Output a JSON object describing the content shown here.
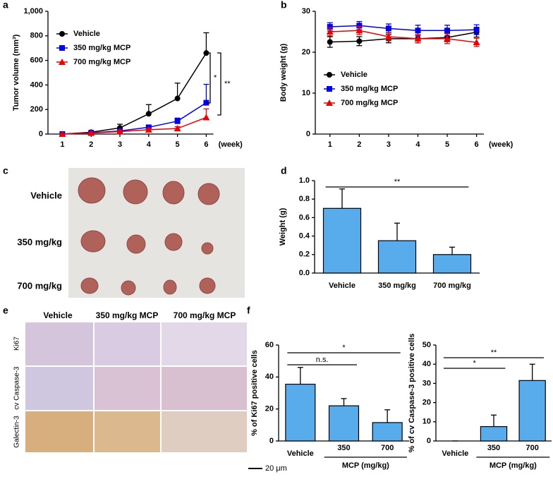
{
  "chart_data": [
    {
      "type": "line",
      "panel": "a",
      "ylabel": "Tumor volume (mm³)",
      "xlabel": "(week)",
      "x": [
        1,
        2,
        3,
        4,
        5,
        6
      ],
      "xlim": [
        0.5,
        6.25
      ],
      "xticks": [
        1,
        2,
        3,
        4,
        5,
        6
      ],
      "ylim": [
        0,
        1000
      ],
      "yticks": [
        0,
        200,
        400,
        600,
        800,
        {
          "value": 1000,
          "label": "1,000"
        }
      ],
      "legend": "upper left",
      "error_bars": "up",
      "series": [
        {
          "name": "Vehicle",
          "color": "#000000",
          "marker": "circle",
          "values": [
            0,
            15,
            50,
            165,
            290,
            660
          ],
          "errors": [
            0,
            5,
            30,
            75,
            125,
            165
          ]
        },
        {
          "name": "350 mg/kg MCP",
          "color": "#0000ee",
          "marker": "square",
          "values": [
            0,
            10,
            25,
            55,
            105,
            255
          ],
          "errors": [
            0,
            3,
            10,
            15,
            25,
            150
          ]
        },
        {
          "name": "700 mg/kg MCP",
          "color": "#ee0000",
          "marker": "triangle",
          "values": [
            0,
            8,
            20,
            35,
            45,
            135
          ],
          "errors": [
            0,
            3,
            8,
            10,
            15,
            70
          ]
        }
      ],
      "annotations": [
        "*",
        "**"
      ]
    },
    {
      "type": "line",
      "panel": "b",
      "ylabel": "Body weight (g)",
      "xlabel": "(week)",
      "x": [
        1,
        2,
        3,
        4,
        5,
        6
      ],
      "xlim": [
        0.5,
        6.25
      ],
      "xticks": [
        1,
        2,
        3,
        4,
        5,
        6
      ],
      "ylim": [
        0,
        30
      ],
      "yticks": [
        0,
        10,
        20,
        30
      ],
      "legend": "center left",
      "error_bars": "both",
      "series": [
        {
          "name": "Vehicle",
          "color": "#000000",
          "marker": "circle",
          "values": [
            22.5,
            22.7,
            23.3,
            23.3,
            23.6,
            24.9
          ],
          "errors": [
            1.3,
            1.1,
            1.0,
            1.0,
            1.0,
            1.2
          ]
        },
        {
          "name": "350 mg/kg MCP",
          "color": "#0000ee",
          "marker": "square",
          "values": [
            26.2,
            26.5,
            25.8,
            25.3,
            25.3,
            25.5
          ],
          "errors": [
            1.0,
            1.0,
            1.1,
            1.3,
            1.3,
            1.2
          ]
        },
        {
          "name": "700 mg/kg MCP",
          "color": "#ee0000",
          "marker": "triangle",
          "values": [
            25.0,
            25.3,
            23.8,
            23.3,
            23.3,
            22.4
          ],
          "errors": [
            1.0,
            1.0,
            1.0,
            1.0,
            1.2,
            1.0
          ]
        }
      ],
      "annotations": []
    },
    {
      "type": "bar",
      "panel": "d",
      "ylabel": "Weight (g)",
      "color": "#58acec",
      "categories": [
        "Vehicle",
        "350 mg/kg",
        "700 mg/kg"
      ],
      "values": [
        0.7,
        0.35,
        0.2
      ],
      "errors": [
        0.21,
        0.19,
        0.08
      ],
      "ylim": [
        0,
        1.0
      ],
      "yticks": [
        {
          "value": 0,
          "label": "0.0"
        },
        0.2,
        0.4,
        0.6,
        0.8,
        {
          "value": 1.0,
          "label": "1.0"
        }
      ],
      "annotations": [
        "**"
      ]
    },
    {
      "type": "bar",
      "panel": "f",
      "ylabel": "% of Ki67 positive cells",
      "xlabel": "MCP (mg/kg)",
      "color": "#58acec",
      "categories": [
        "Vehicle",
        "350",
        "700"
      ],
      "values": [
        35.5,
        22,
        11.5
      ],
      "errors": [
        10.5,
        4.5,
        8
      ],
      "ylim": [
        0,
        60
      ],
      "yticks": [
        0,
        20,
        40,
        60
      ],
      "annotations": [
        "n.s.",
        "*"
      ]
    },
    {
      "type": "bar",
      "ylabel": "% of cv Caspase-3 positive cells",
      "xlabel": "MCP (mg/kg)",
      "color": "#58acec",
      "categories": [
        "Vehicle",
        "350",
        "700"
      ],
      "values": [
        0,
        7.5,
        31.5
      ],
      "errors": [
        0,
        6,
        8.5
      ],
      "ylim": [
        0,
        50
      ],
      "yticks": [
        0,
        10,
        20,
        30,
        40,
        50
      ],
      "annotations": [
        "*",
        "**"
      ]
    }
  ],
  "photo_panels": {
    "c": {
      "panel": "c",
      "rows": [
        "Vehicle",
        "350 mg/kg",
        "700 mg/kg"
      ]
    },
    "e": {
      "panel": "e",
      "columns": [
        "Vehicle",
        "350 mg/kg MCP",
        "700 mg/kg MCP"
      ],
      "rows": [
        "Ki67",
        "cv Caspase-3",
        "Galectin-3"
      ],
      "scale_bar": "20 μm"
    }
  }
}
